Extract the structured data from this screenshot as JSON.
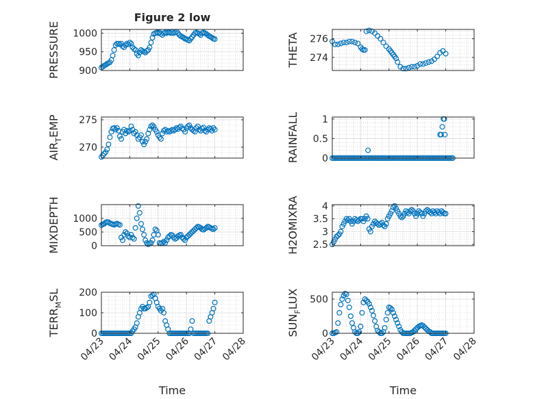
{
  "figure": {
    "title": "Figure 2 low",
    "xlabel": "Time",
    "marker_color": "#0072BD",
    "grid_color": "#BFBFBF",
    "axis_color": "#262626",
    "time_ticks": [
      "04/23",
      "04/24",
      "04/25",
      "04/26",
      "04/27",
      "04/28"
    ]
  },
  "chart_data": [
    {
      "type": "scatter",
      "title": "Figure 2 low",
      "ylabel": "PRESSURE",
      "ylabel_sub": "",
      "xlim": [
        0,
        5
      ],
      "ylim": [
        900,
        1010
      ],
      "yticks": [
        900,
        950,
        1000
      ],
      "x": [
        0.0,
        0.05,
        0.1,
        0.15,
        0.2,
        0.25,
        0.3,
        0.35,
        0.4,
        0.45,
        0.5,
        0.55,
        0.6,
        0.65,
        0.7,
        0.75,
        0.8,
        0.85,
        0.9,
        0.95,
        1.0,
        1.05,
        1.1,
        1.15,
        1.2,
        1.25,
        1.3,
        1.35,
        1.4,
        1.45,
        1.5,
        1.55,
        1.6,
        1.65,
        1.7,
        1.75,
        1.8,
        1.85,
        1.9,
        1.95,
        2.0,
        2.05,
        2.1,
        2.15,
        2.2,
        2.25,
        2.3,
        2.35,
        2.4,
        2.45,
        2.5,
        2.55,
        2.6,
        2.65,
        2.7,
        2.75,
        2.8,
        2.85,
        2.9,
        2.95,
        3.0,
        3.05,
        3.1,
        3.15,
        3.2,
        3.25,
        3.3,
        3.35,
        3.4,
        3.45,
        3.5,
        3.55,
        3.6,
        3.65,
        3.7,
        3.75,
        3.8,
        3.85,
        3.9,
        3.95,
        4.0
      ],
      "y": [
        908,
        910,
        913,
        915,
        918,
        920,
        922,
        928,
        940,
        955,
        968,
        972,
        972,
        970,
        972,
        965,
        962,
        968,
        972,
        970,
        975,
        972,
        962,
        958,
        955,
        945,
        940,
        948,
        955,
        952,
        950,
        948,
        952,
        955,
        962,
        975,
        988,
        998,
        1000,
        1002,
        1000,
        1002,
        998,
        995,
        1000,
        1002,
        1000,
        1002,
        1002,
        1000,
        1003,
        1000,
        1002,
        1004,
        1000,
        995,
        992,
        990,
        988,
        985,
        984,
        982,
        980,
        985,
        990,
        995,
        1000,
        1002,
        1000,
        998,
        995,
        1000,
        1002,
        1000,
        998,
        995,
        992,
        990,
        988,
        985,
        984
      ],
      "grid": true,
      "minor_grid": true
    },
    {
      "type": "scatter",
      "ylabel": "THETA",
      "ylabel_sub": "",
      "xlim": [
        0,
        5
      ],
      "ylim": [
        272.6,
        277
      ],
      "yticks": [
        274,
        276
      ],
      "x": [
        0.0,
        0.1,
        0.2,
        0.3,
        0.4,
        0.5,
        0.6,
        0.7,
        0.8,
        0.9,
        1.0,
        1.05,
        1.1,
        1.15,
        1.2,
        1.3,
        1.4,
        1.5,
        1.6,
        1.7,
        1.8,
        1.9,
        2.0,
        2.05,
        2.1,
        2.15,
        2.2,
        2.25,
        2.3,
        2.4,
        2.5,
        2.6,
        2.7,
        2.8,
        2.9,
        3.0,
        3.1,
        3.2,
        3.3,
        3.4,
        3.5,
        3.6,
        3.7,
        3.8,
        3.9,
        4.0
      ],
      "y": [
        275.7,
        275.4,
        275.4,
        275.5,
        275.6,
        275.6,
        275.7,
        275.7,
        275.6,
        275.5,
        275.1,
        274.9,
        274.8,
        274.8,
        276.8,
        276.9,
        276.8,
        276.6,
        276.3,
        276.0,
        275.6,
        275.2,
        274.9,
        274.7,
        274.5,
        274.3,
        274.1,
        273.9,
        273.5,
        273.0,
        272.8,
        272.8,
        272.9,
        273.0,
        273.0,
        273.1,
        273.3,
        273.3,
        273.4,
        273.5,
        273.6,
        273.8,
        274.1,
        274.5,
        274.7,
        274.4
      ],
      "grid": true,
      "minor_grid": true
    },
    {
      "type": "scatter",
      "ylabel": "AIR",
      "ylabel_sub": "T",
      "ylabel_rest": "EMP",
      "xlim": [
        0,
        5
      ],
      "ylim": [
        268,
        275.5
      ],
      "yticks": [
        270,
        275
      ],
      "x": [
        0.0,
        0.05,
        0.1,
        0.15,
        0.2,
        0.25,
        0.3,
        0.35,
        0.4,
        0.45,
        0.5,
        0.55,
        0.6,
        0.65,
        0.7,
        0.75,
        0.8,
        0.85,
        0.9,
        0.95,
        1.0,
        1.05,
        1.1,
        1.15,
        1.2,
        1.25,
        1.3,
        1.35,
        1.4,
        1.45,
        1.5,
        1.55,
        1.6,
        1.65,
        1.7,
        1.75,
        1.8,
        1.85,
        1.9,
        1.95,
        2.0,
        2.05,
        2.1,
        2.15,
        2.2,
        2.25,
        2.3,
        2.35,
        2.4,
        2.45,
        2.5,
        2.55,
        2.6,
        2.65,
        2.7,
        2.75,
        2.8,
        2.85,
        2.9,
        2.95,
        3.0,
        3.05,
        3.1,
        3.15,
        3.2,
        3.25,
        3.3,
        3.35,
        3.4,
        3.45,
        3.5,
        3.55,
        3.6,
        3.65,
        3.7,
        3.75,
        3.8,
        3.85,
        3.9,
        3.95,
        4.0
      ],
      "y": [
        268.2,
        268.5,
        268.8,
        269.1,
        269.6,
        270.5,
        271.8,
        272.8,
        273.4,
        273.5,
        273.2,
        273.5,
        273.0,
        272.0,
        271.5,
        272.8,
        273.2,
        272.5,
        273.0,
        272.8,
        273.0,
        273.8,
        273.2,
        272.5,
        272.8,
        272.2,
        271.5,
        271.8,
        272.2,
        271.0,
        270.5,
        271.0,
        271.5,
        272.5,
        273.2,
        273.8,
        274.0,
        273.7,
        273.2,
        272.8,
        272.2,
        271.8,
        271.5,
        272.5,
        273.0,
        273.2,
        272.8,
        273.0,
        272.8,
        273.0,
        273.2,
        273.0,
        273.2,
        273.5,
        273.3,
        273.6,
        273.8,
        273.4,
        273.2,
        272.8,
        273.5,
        273.8,
        274.0,
        273.5,
        273.2,
        273.0,
        272.8,
        273.5,
        273.8,
        273.2,
        273.0,
        273.4,
        273.6,
        273.0,
        272.8,
        273.2,
        273.5,
        273.3,
        273.0,
        273.5,
        273.2
      ],
      "grid": true,
      "minor_grid": true
    },
    {
      "type": "scatter",
      "ylabel": "RAINFALL",
      "ylabel_sub": "",
      "xlim": [
        0,
        5
      ],
      "ylim": [
        0,
        1.05
      ],
      "yticks": [
        0,
        0.5,
        1
      ],
      "x": [
        0.0,
        0.05,
        0.1,
        0.15,
        0.2,
        0.25,
        0.3,
        0.35,
        0.4,
        0.45,
        0.5,
        0.55,
        0.6,
        0.65,
        0.7,
        0.75,
        0.8,
        0.85,
        0.9,
        0.95,
        1.0,
        1.05,
        1.1,
        1.15,
        1.2,
        1.25,
        1.3,
        1.35,
        1.4,
        1.45,
        1.5,
        1.55,
        1.6,
        1.65,
        1.7,
        1.75,
        1.8,
        1.85,
        1.9,
        1.95,
        2.0,
        2.05,
        2.1,
        2.15,
        2.2,
        2.25,
        2.3,
        2.35,
        2.4,
        2.45,
        2.5,
        2.55,
        2.6,
        2.65,
        2.7,
        2.75,
        2.8,
        2.85,
        2.9,
        2.95,
        3.0,
        3.05,
        3.1,
        3.15,
        3.2,
        3.25,
        3.3,
        3.35,
        3.4,
        3.45,
        3.5,
        3.55,
        3.6,
        3.65,
        3.7,
        3.75,
        3.8,
        3.85,
        3.9,
        3.95,
        4.0,
        4.05,
        4.1,
        4.15,
        4.2,
        4.25,
        1.26,
        3.8,
        3.84,
        3.88,
        3.92,
        3.95,
        3.97
      ],
      "y": [
        0,
        0,
        0,
        0,
        0,
        0,
        0,
        0,
        0,
        0,
        0,
        0,
        0,
        0,
        0,
        0,
        0,
        0,
        0,
        0,
        0,
        0,
        0,
        0,
        0,
        0,
        0,
        0,
        0,
        0,
        0,
        0,
        0,
        0,
        0,
        0,
        0,
        0,
        0,
        0,
        0,
        0,
        0,
        0,
        0,
        0,
        0,
        0,
        0,
        0,
        0,
        0,
        0,
        0,
        0,
        0,
        0,
        0,
        0,
        0,
        0,
        0,
        0,
        0,
        0,
        0,
        0,
        0,
        0,
        0,
        0,
        0,
        0,
        0,
        0,
        0,
        0,
        0,
        0,
        0,
        0,
        0,
        0,
        0,
        0,
        0,
        0.2,
        0.6,
        0.6,
        0.8,
        1.0,
        1.0,
        0.6
      ],
      "grid": true,
      "minor_grid": true
    },
    {
      "type": "scatter",
      "ylabel": "MIXDEPTH",
      "ylabel_sub": "",
      "xlim": [
        0,
        5
      ],
      "ylim": [
        0,
        1500
      ],
      "yticks": [
        0,
        500,
        1000
      ],
      "x": [
        0.0,
        0.05,
        0.1,
        0.15,
        0.2,
        0.25,
        0.3,
        0.35,
        0.4,
        0.45,
        0.5,
        0.55,
        0.6,
        0.65,
        0.7,
        0.75,
        0.8,
        0.85,
        0.9,
        0.95,
        1.0,
        1.05,
        1.1,
        1.15,
        1.2,
        1.25,
        1.3,
        1.35,
        1.4,
        1.45,
        1.5,
        1.55,
        1.6,
        1.65,
        1.7,
        1.75,
        1.8,
        1.85,
        1.9,
        1.95,
        2.0,
        2.05,
        2.1,
        2.15,
        2.2,
        2.25,
        2.3,
        2.35,
        2.4,
        2.45,
        2.5,
        2.55,
        2.6,
        2.65,
        2.7,
        2.75,
        2.8,
        2.85,
        2.9,
        2.95,
        3.0,
        3.05,
        3.1,
        3.15,
        3.2,
        3.25,
        3.3,
        3.35,
        3.4,
        3.45,
        3.5,
        3.55,
        3.6,
        3.65,
        3.7,
        3.75,
        3.8,
        3.85,
        3.9,
        3.95,
        4.0
      ],
      "y": [
        750,
        780,
        800,
        850,
        870,
        860,
        820,
        800,
        780,
        760,
        790,
        810,
        780,
        760,
        300,
        200,
        400,
        500,
        450,
        350,
        300,
        400,
        300,
        250,
        650,
        1000,
        1450,
        1200,
        800,
        600,
        400,
        200,
        100,
        50,
        80,
        100,
        200,
        400,
        600,
        550,
        400,
        100,
        80,
        100,
        150,
        100,
        200,
        300,
        350,
        400,
        380,
        300,
        250,
        280,
        350,
        380,
        400,
        300,
        250,
        200,
        300,
        350,
        400,
        450,
        500,
        550,
        600,
        650,
        700,
        680,
        650,
        600,
        580,
        620,
        650,
        700,
        680,
        650,
        620,
        600,
        650
      ],
      "grid": true,
      "minor_grid": true
    },
    {
      "type": "scatter",
      "ylabel": "H2OMIXRA",
      "ylabel_sub": "",
      "xlim": [
        0,
        5
      ],
      "ylim": [
        2.45,
        4.05
      ],
      "yticks": [
        2.5,
        3,
        3.5,
        4
      ],
      "x": [
        0.0,
        0.05,
        0.1,
        0.15,
        0.2,
        0.25,
        0.3,
        0.35,
        0.4,
        0.45,
        0.5,
        0.55,
        0.6,
        0.65,
        0.7,
        0.75,
        0.8,
        0.85,
        0.9,
        0.95,
        1.0,
        1.05,
        1.1,
        1.15,
        1.2,
        1.25,
        1.3,
        1.35,
        1.4,
        1.45,
        1.5,
        1.55,
        1.6,
        1.65,
        1.7,
        1.75,
        1.8,
        1.85,
        1.9,
        1.95,
        2.0,
        2.05,
        2.1,
        2.15,
        2.2,
        2.25,
        2.3,
        2.35,
        2.4,
        2.45,
        2.5,
        2.55,
        2.6,
        2.65,
        2.7,
        2.75,
        2.8,
        2.85,
        2.9,
        2.95,
        3.0,
        3.05,
        3.1,
        3.15,
        3.2,
        3.25,
        3.3,
        3.35,
        3.4,
        3.45,
        3.5,
        3.55,
        3.6,
        3.65,
        3.7,
        3.75,
        3.8,
        3.85,
        3.9,
        3.95,
        4.0
      ],
      "y": [
        2.5,
        2.6,
        2.7,
        2.8,
        2.85,
        2.9,
        3.0,
        3.2,
        3.3,
        3.4,
        3.5,
        3.45,
        3.5,
        3.4,
        3.3,
        3.4,
        3.5,
        3.45,
        3.4,
        3.45,
        3.5,
        3.5,
        3.4,
        3.5,
        3.6,
        3.5,
        3.1,
        3.0,
        3.2,
        3.3,
        3.4,
        3.35,
        3.3,
        3.25,
        3.3,
        3.35,
        3.25,
        3.2,
        3.3,
        3.5,
        3.6,
        3.7,
        3.8,
        3.95,
        4.0,
        3.9,
        3.8,
        3.7,
        3.6,
        3.55,
        3.6,
        3.7,
        3.8,
        3.75,
        3.7,
        3.8,
        3.85,
        3.8,
        3.7,
        3.6,
        3.7,
        3.8,
        3.75,
        3.7,
        3.6,
        3.7,
        3.8,
        3.85,
        3.8,
        3.75,
        3.7,
        3.8,
        3.75,
        3.7,
        3.8,
        3.75,
        3.7,
        3.8,
        3.75,
        3.7,
        3.7
      ],
      "grid": true,
      "minor_grid": true
    },
    {
      "type": "scatter",
      "ylabel": "TERR",
      "ylabel_sub": "M",
      "ylabel_rest": "SL",
      "xlim": [
        0,
        5
      ],
      "ylim": [
        0,
        200
      ],
      "yticks": [
        0,
        100,
        200
      ],
      "x": [
        0.0,
        0.05,
        0.1,
        0.15,
        0.2,
        0.25,
        0.3,
        0.35,
        0.4,
        0.45,
        0.5,
        0.55,
        0.6,
        0.65,
        0.7,
        0.75,
        0.8,
        0.85,
        0.9,
        0.95,
        1.0,
        1.05,
        1.1,
        1.15,
        1.2,
        1.25,
        1.3,
        1.35,
        1.4,
        1.45,
        1.5,
        1.55,
        1.6,
        1.65,
        1.7,
        1.75,
        1.8,
        1.85,
        1.9,
        1.95,
        2.0,
        2.05,
        2.1,
        2.15,
        2.2,
        2.25,
        2.3,
        2.35,
        2.4,
        2.45,
        2.5,
        2.55,
        2.6,
        2.65,
        2.7,
        2.75,
        2.8,
        2.85,
        2.9,
        2.95,
        3.0,
        3.05,
        3.1,
        3.15,
        3.2,
        3.25,
        3.3,
        3.35,
        3.4,
        3.45,
        3.5,
        3.55,
        3.6,
        3.65,
        3.7,
        3.75,
        3.8,
        3.85,
        3.9,
        3.95,
        4.0
      ],
      "y": [
        0,
        0,
        0,
        0,
        0,
        0,
        0,
        0,
        0,
        0,
        0,
        0,
        0,
        0,
        0,
        0,
        0,
        0,
        0,
        0,
        0,
        0,
        10,
        20,
        30,
        50,
        80,
        100,
        120,
        130,
        120,
        120,
        125,
        130,
        150,
        180,
        185,
        190,
        170,
        150,
        130,
        120,
        110,
        120,
        100,
        60,
        40,
        20,
        0,
        0,
        0,
        0,
        0,
        0,
        0,
        0,
        0,
        0,
        0,
        0,
        0,
        0,
        0,
        20,
        60,
        0,
        0,
        0,
        0,
        0,
        0,
        0,
        0,
        0,
        0,
        0,
        60,
        80,
        100,
        120,
        150
      ],
      "grid": true,
      "minor_grid": true
    },
    {
      "type": "scatter",
      "ylabel": "SUN",
      "ylabel_sub": "F",
      "ylabel_rest": "LUX",
      "xlim": [
        0,
        5
      ],
      "ylim": [
        0,
        600
      ],
      "yticks": [
        0,
        500
      ],
      "x": [
        0.0,
        0.05,
        0.1,
        0.15,
        0.2,
        0.25,
        0.3,
        0.35,
        0.4,
        0.45,
        0.5,
        0.55,
        0.6,
        0.65,
        0.7,
        0.75,
        0.8,
        0.85,
        0.9,
        0.95,
        1.0,
        1.05,
        1.1,
        1.15,
        1.2,
        1.25,
        1.3,
        1.35,
        1.4,
        1.45,
        1.5,
        1.55,
        1.6,
        1.65,
        1.7,
        1.75,
        1.8,
        1.85,
        1.9,
        1.95,
        2.0,
        2.05,
        2.1,
        2.15,
        2.2,
        2.25,
        2.3,
        2.35,
        2.4,
        2.45,
        2.5,
        2.55,
        2.6,
        2.65,
        2.7,
        2.75,
        2.8,
        2.85,
        2.9,
        2.95,
        3.0,
        3.05,
        3.1,
        3.15,
        3.2,
        3.25,
        3.3,
        3.35,
        3.4,
        3.45,
        3.5,
        3.55,
        3.6,
        3.65,
        3.7,
        3.75,
        3.8,
        3.85,
        3.9,
        3.95,
        4.0
      ],
      "y": [
        0,
        0,
        10,
        20,
        150,
        300,
        420,
        500,
        550,
        580,
        570,
        480,
        380,
        250,
        150,
        80,
        20,
        0,
        0,
        20,
        100,
        300,
        450,
        500,
        480,
        460,
        430,
        380,
        330,
        260,
        180,
        100,
        40,
        20,
        0,
        0,
        20,
        80,
        200,
        300,
        380,
        370,
        350,
        300,
        250,
        200,
        150,
        100,
        50,
        20,
        0,
        0,
        0,
        0,
        0,
        0,
        10,
        20,
        40,
        60,
        80,
        100,
        110,
        120,
        110,
        90,
        70,
        50,
        30,
        20,
        0,
        0,
        0,
        0,
        0,
        0,
        0,
        0,
        0,
        0,
        0
      ],
      "grid": true,
      "minor_grid": true
    }
  ]
}
